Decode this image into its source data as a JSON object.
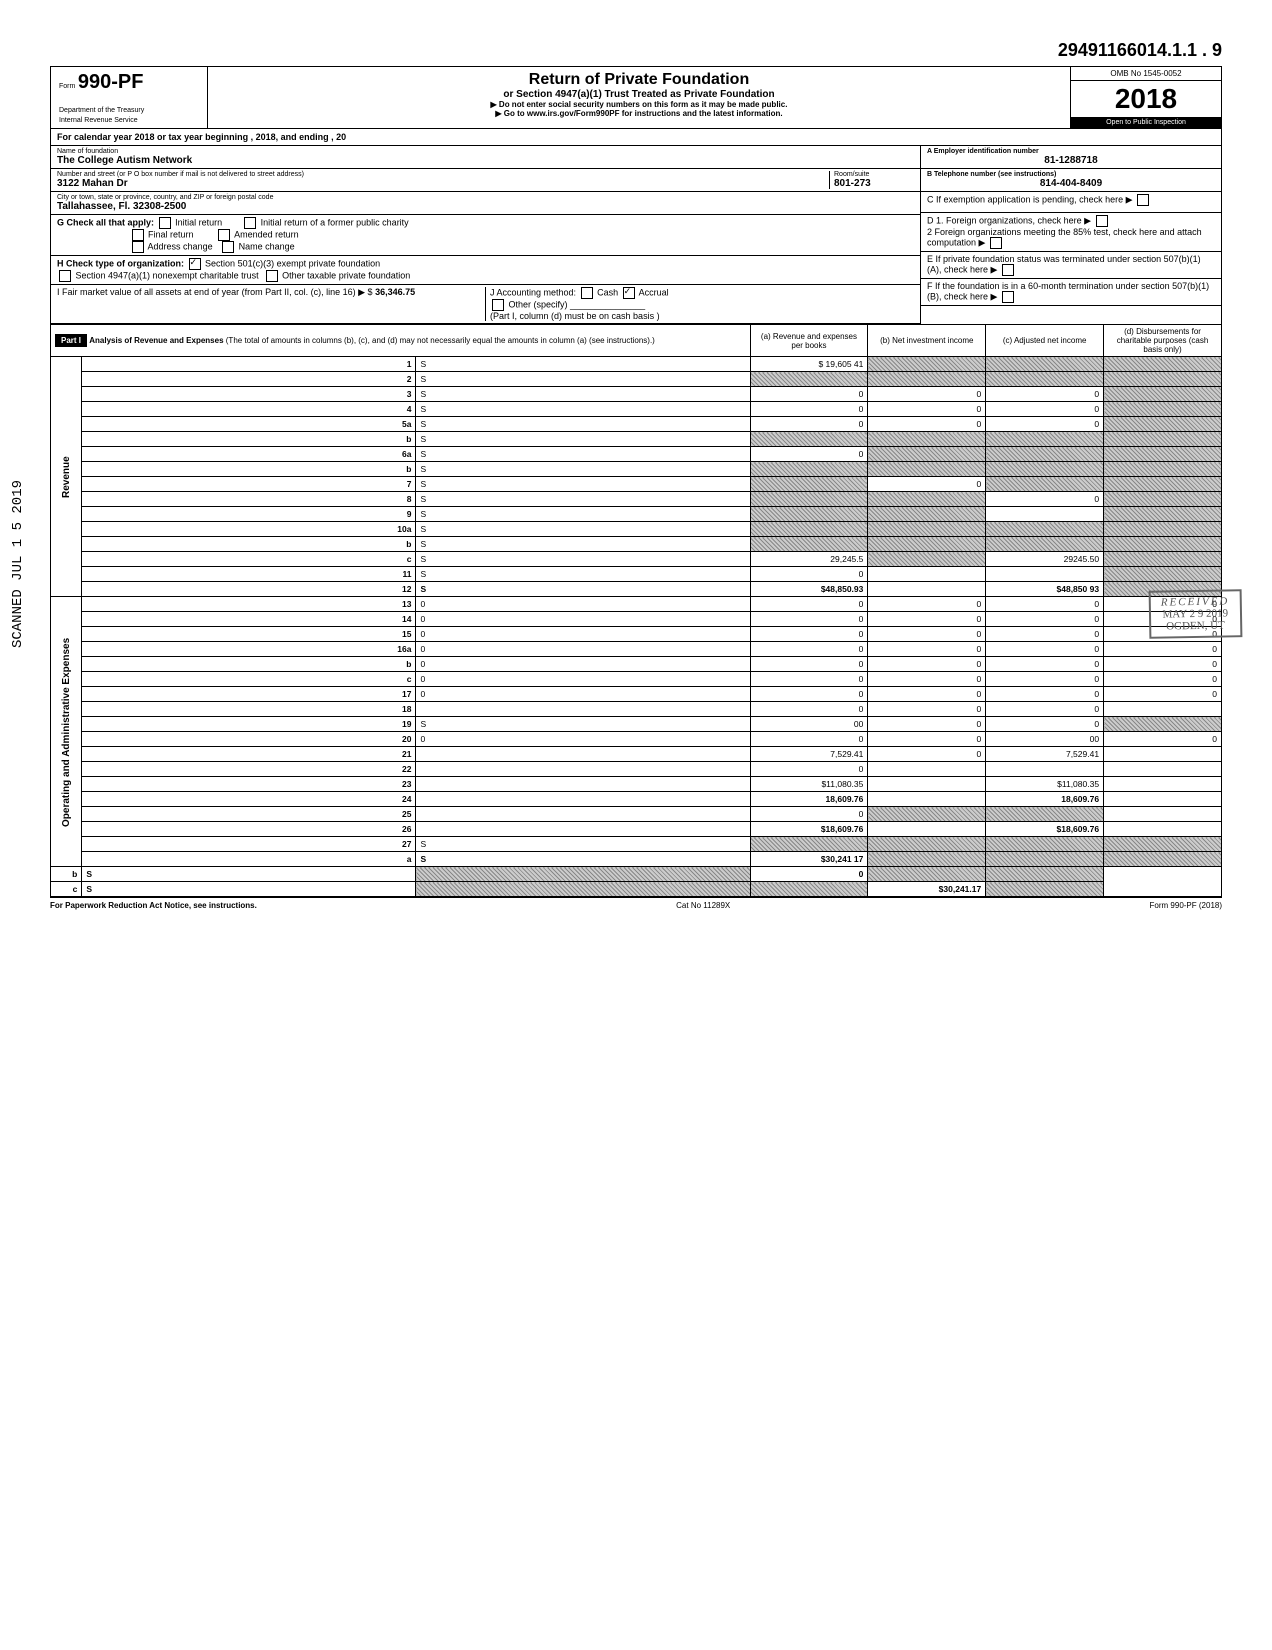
{
  "page_number": "29491166014.1.1 . 9",
  "form": {
    "small_top": "Form",
    "number": "990-PF",
    "dept1": "Department of the Treasury",
    "dept2": "Internal Revenue Service",
    "title": "Return of Private Foundation",
    "subtitle": "or Section 4947(a)(1) Trust Treated as Private Foundation",
    "warn": "▶ Do not enter social security numbers on this form as it may be made public.",
    "link": "▶ Go to www.irs.gov/Form990PF for instructions and the latest information.",
    "omb": "OMB No 1545-0052",
    "year": "2018",
    "inspect": "Open to Public Inspection"
  },
  "cal_year": "For calendar year 2018 or tax year beginning                    , 2018, and ending                    , 20",
  "foundation": {
    "name_label": "Name of foundation",
    "name": "The College Autism Network",
    "addr_label": "Number and street (or P O  box number if mail is not delivered to street address)",
    "addr": "3122 Mahan Dr",
    "room_label": "Room/suite",
    "room": "801-273",
    "city_label": "City or town, state or province, country, and ZIP or foreign postal code",
    "city": "Tallahassee, Fl.  32308-2500",
    "ein_label": "A   Employer identification number",
    "ein": "81-1288718",
    "phone_label": "B   Telephone number (see instructions)",
    "phone": "814-404-8409",
    "c_label": "C   If exemption application is pending, check here ▶",
    "g_label": "G   Check all that apply:",
    "g_opts": [
      "Initial return",
      "Final return",
      "Address change",
      "Initial return of a former public charity",
      "Amended return",
      "Name change"
    ],
    "d1": "D  1. Foreign organizations, check here",
    "d2": "2  Foreign organizations meeting the 85% test, check here and attach computation",
    "h_label": "H   Check type of organization:",
    "h_opts": [
      "Section 501(c)(3) exempt private foundation",
      "Section 4947(a)(1) nonexempt charitable trust",
      "Other taxable private foundation"
    ],
    "e_label": "E   If private foundation status was terminated under section 507(b)(1)(A), check here",
    "i_label": "I    Fair market value of all assets at end of year  (from Part II, col. (c), line 16) ▶  $",
    "i_value": "36,346.75",
    "j_label": "J   Accounting method:",
    "j_cash": "Cash",
    "j_accrual": "Accrual",
    "j_other": "Other (specify)",
    "j_note": "(Part I, column (d) must be on cash basis )",
    "f_label": "F   If the foundation is in a 60-month termination under section 507(b)(1)(B), check here"
  },
  "part1": {
    "header": "Part I",
    "title": "Analysis of Revenue and Expenses",
    "note": "(The total of amounts in columns (b), (c), and (d) may not necessarily equal the amounts in column (a) (see instructions).)",
    "cols": {
      "a": "(a) Revenue and expenses per books",
      "b": "(b) Net investment income",
      "c": "(c) Adjusted net income",
      "d": "(d) Disbursements for charitable purposes (cash basis only)"
    }
  },
  "side_labels": {
    "revenue": "Revenue",
    "expenses": "Operating and Administrative Expenses"
  },
  "lines": [
    {
      "n": "1",
      "d": "S",
      "a": "$ 19,605 41",
      "b": "S",
      "c": "S"
    },
    {
      "n": "2",
      "d": "S",
      "a": "S",
      "b": "S",
      "c": "S"
    },
    {
      "n": "3",
      "d": "S",
      "a": "0",
      "b": "0",
      "c": "0"
    },
    {
      "n": "4",
      "d": "S",
      "a": "0",
      "b": "0",
      "c": "0"
    },
    {
      "n": "5a",
      "d": "S",
      "a": "0",
      "b": "0",
      "c": "0"
    },
    {
      "n": "b",
      "d": "S",
      "a": "S",
      "b": "S",
      "c": "S"
    },
    {
      "n": "6a",
      "d": "S",
      "a": "0",
      "b": "S",
      "c": "S"
    },
    {
      "n": "b",
      "d": "S",
      "a": "S",
      "b": "S",
      "c": "S"
    },
    {
      "n": "7",
      "d": "S",
      "a": "S",
      "b": "0",
      "c": "S"
    },
    {
      "n": "8",
      "d": "S",
      "a": "S",
      "b": "S",
      "c": "0"
    },
    {
      "n": "9",
      "d": "S",
      "a": "S",
      "b": "S",
      "c": ""
    },
    {
      "n": "10a",
      "d": "S",
      "a": "S",
      "b": "S",
      "c": "S"
    },
    {
      "n": "b",
      "d": "S",
      "a": "S",
      "b": "S",
      "c": "S"
    },
    {
      "n": "c",
      "d": "S",
      "a": "29,245.5",
      "b": "S",
      "c": "29245.50"
    },
    {
      "n": "11",
      "d": "S",
      "a": "0",
      "b": "",
      "c": ""
    },
    {
      "n": "12",
      "d": "S",
      "a": "$48,850.93",
      "b": "",
      "c": "$48,850 93",
      "bold": true
    },
    {
      "n": "13",
      "d": "0",
      "a": "0",
      "b": "0",
      "c": "0"
    },
    {
      "n": "14",
      "d": "0",
      "a": "0",
      "b": "0",
      "c": "0"
    },
    {
      "n": "15",
      "d": "0",
      "a": "0",
      "b": "0",
      "c": "0"
    },
    {
      "n": "16a",
      "d": "0",
      "a": "0",
      "b": "0",
      "c": "0"
    },
    {
      "n": "b",
      "d": "0",
      "a": "0",
      "b": "0",
      "c": "0"
    },
    {
      "n": "c",
      "d": "0",
      "a": "0",
      "b": "0",
      "c": "0"
    },
    {
      "n": "17",
      "d": "0",
      "a": "0",
      "b": "0",
      "c": "0"
    },
    {
      "n": "18",
      "d": "",
      "a": "0",
      "b": "0",
      "c": "0"
    },
    {
      "n": "19",
      "d": "S",
      "a": "00",
      "b": "0",
      "c": "0"
    },
    {
      "n": "20",
      "d": "0",
      "a": "0",
      "b": "0",
      "c": "00"
    },
    {
      "n": "21",
      "d": "",
      "a": "7,529.41",
      "b": "0",
      "c": "7,529.41"
    },
    {
      "n": "22",
      "d": "",
      "a": "0",
      "b": "",
      "c": ""
    },
    {
      "n": "23",
      "d": "",
      "a": "$11,080.35",
      "b": "",
      "c": "$11,080.35"
    },
    {
      "n": "24",
      "d": "",
      "a": "18,609.76",
      "b": "",
      "c": "18,609.76",
      "bold": true
    },
    {
      "n": "25",
      "d": "",
      "a": "0",
      "b": "S",
      "c": "S"
    },
    {
      "n": "26",
      "d": "",
      "a": "$18,609.76",
      "b": "",
      "c": "$18,609.76",
      "bold": true
    },
    {
      "n": "27",
      "d": "S",
      "a": "S",
      "b": "S",
      "c": "S"
    },
    {
      "n": "a",
      "d": "S",
      "a": "$30,241 17",
      "b": "S",
      "c": "S",
      "bold": true
    },
    {
      "n": "b",
      "d": "S",
      "a": "S",
      "b": "0",
      "c": "S",
      "bold": true
    },
    {
      "n": "c",
      "d": "S",
      "a": "S",
      "b": "S",
      "c": "$30,241.17",
      "bold": true
    }
  ],
  "footer": {
    "left": "For Paperwork Reduction Act Notice, see instructions.",
    "mid": "Cat No 11289X",
    "right": "Form 990-PF (2018)"
  },
  "stamps": {
    "scanned": "SCANNED JUL 1 5 2019",
    "received_title": "RECEIVED",
    "received_date": "MAY 2 9 2019",
    "received_org": "OGDEN, UT"
  }
}
